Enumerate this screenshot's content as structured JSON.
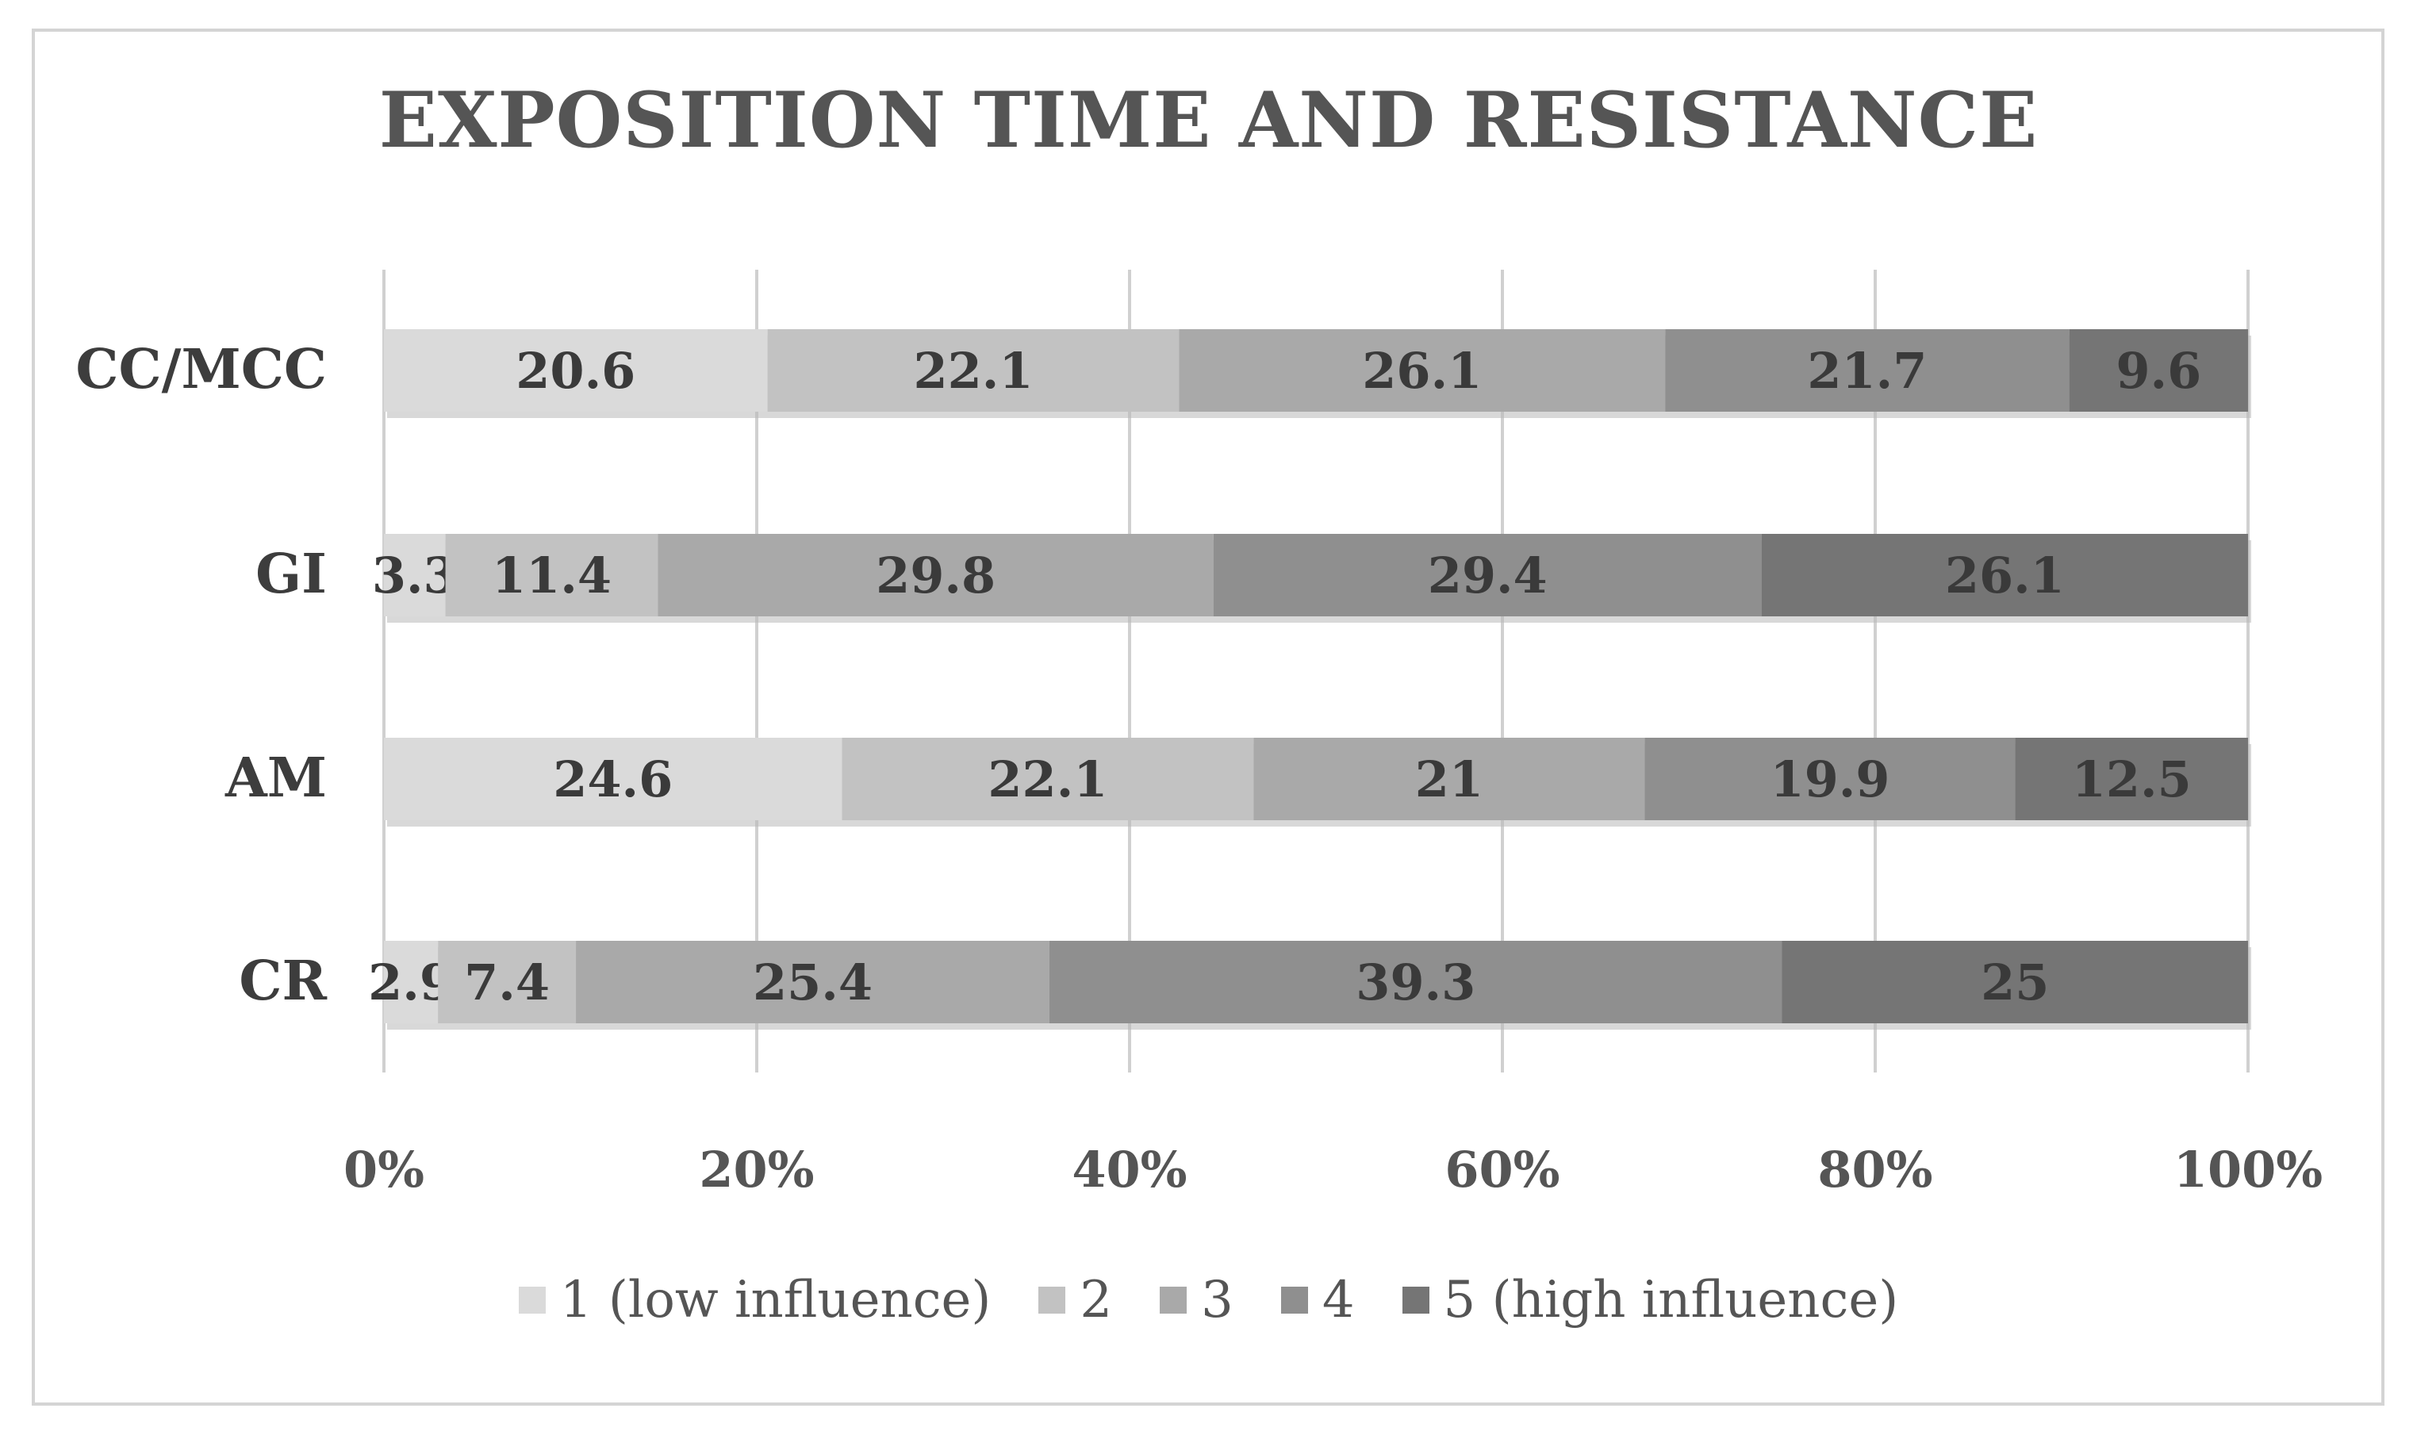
{
  "chart_data": {
    "type": "bar",
    "orientation": "horizontal",
    "stacking": "percent",
    "title": "EXPOSITION TIME AND RESISTANCE",
    "categories": [
      "CC/MCC",
      "GI",
      "AM",
      "CR"
    ],
    "series": [
      {
        "name": "1 (low influence)",
        "color": "#dadada",
        "values": [
          20.6,
          3.3,
          24.6,
          2.9
        ]
      },
      {
        "name": "2",
        "color": "#c2c2c2",
        "values": [
          22.1,
          11.4,
          22.1,
          7.4
        ]
      },
      {
        "name": "3",
        "color": "#a9a9a9",
        "values": [
          26.1,
          29.8,
          21,
          25.4
        ]
      },
      {
        "name": "4",
        "color": "#8f8f8f",
        "values": [
          21.7,
          29.4,
          19.9,
          39.3
        ]
      },
      {
        "name": "5 (high influence)",
        "color": "#757575",
        "values": [
          9.6,
          26.1,
          12.5,
          25
        ]
      }
    ],
    "xticks": [
      "0%",
      "20%",
      "40%",
      "60%",
      "80%",
      "100%"
    ],
    "xlim": [
      0,
      100
    ],
    "grid": true,
    "legend": "bottom"
  }
}
